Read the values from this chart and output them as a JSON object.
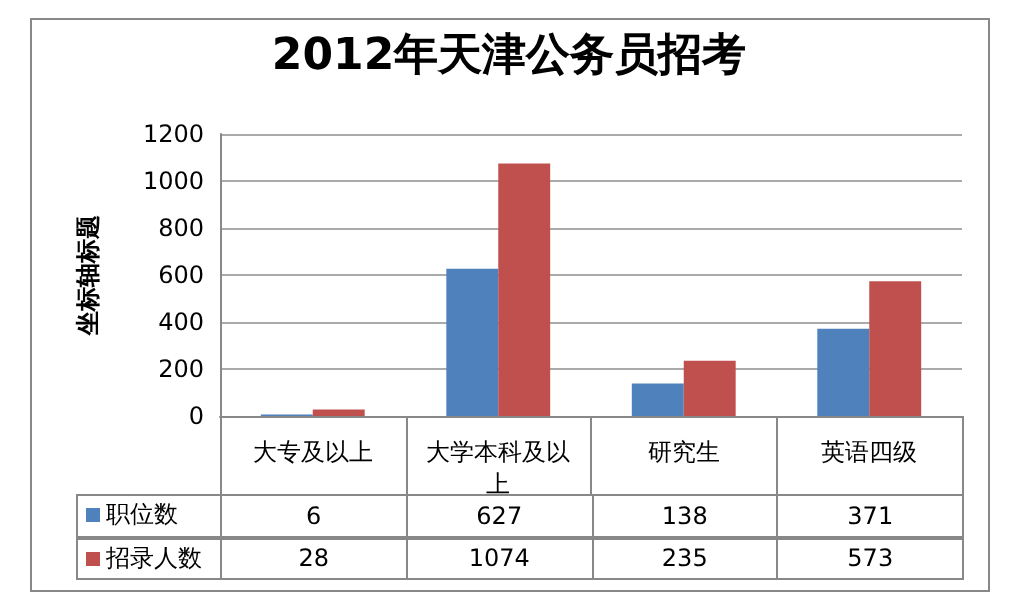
{
  "chart_data": {
    "type": "bar",
    "title": "2012年天津公务员招考",
    "ylabel": "坐标轴标题",
    "categories": [
      "大专及以上",
      "大学本科及以上",
      "研究生",
      "英语四级"
    ],
    "series": [
      {
        "name": "职位数",
        "color": "#4f81bd",
        "values": [
          6,
          627,
          138,
          371
        ]
      },
      {
        "name": "招录人数",
        "color": "#c0504d",
        "values": [
          28,
          1074,
          235,
          573
        ]
      }
    ],
    "ylim": [
      0,
      1200
    ],
    "yticks": [
      0,
      200,
      400,
      600,
      800,
      1000,
      1200
    ],
    "grid": "y",
    "legend": "bottom",
    "data_labels": true
  }
}
